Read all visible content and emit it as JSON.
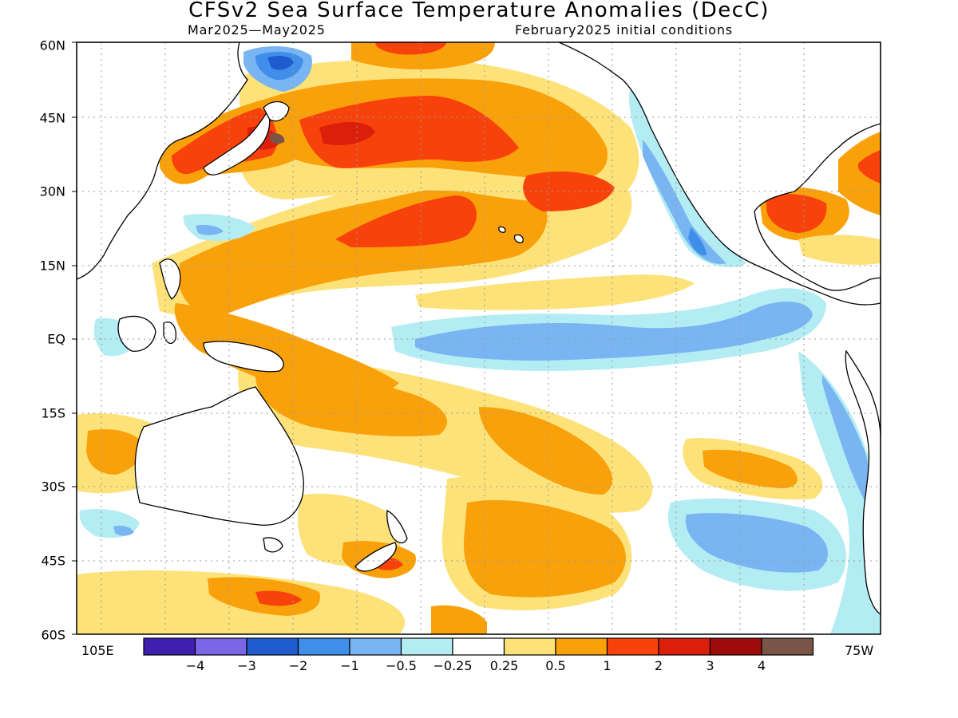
{
  "title": "CFSv2 Sea Surface Temperature Anomalies (DecC)",
  "subtitle_left": "Mar2025—May2025",
  "subtitle_right": "February2025 initial conditions",
  "lat_labels": [
    "60N",
    "45N",
    "30N",
    "15N",
    "EQ",
    "15S",
    "30S",
    "45S",
    "60S"
  ],
  "lon_label_left": "105E",
  "lon_label_right": "75W",
  "colorbar": {
    "colors": [
      "#3f1fae",
      "#7a66e6",
      "#1f5ccf",
      "#3f8fea",
      "#79b5f2",
      "#b3ecf3",
      "#ffffff",
      "#fde27a",
      "#f9a10a",
      "#f8420b",
      "#dc1f0b",
      "#9f0a0a",
      "#7b5448"
    ],
    "labels": [
      "−4",
      "−3",
      "−2",
      "−1",
      "−0.5",
      "−0.25",
      "0.25",
      "0.5",
      "1",
      "2",
      "3",
      "4"
    ]
  }
}
